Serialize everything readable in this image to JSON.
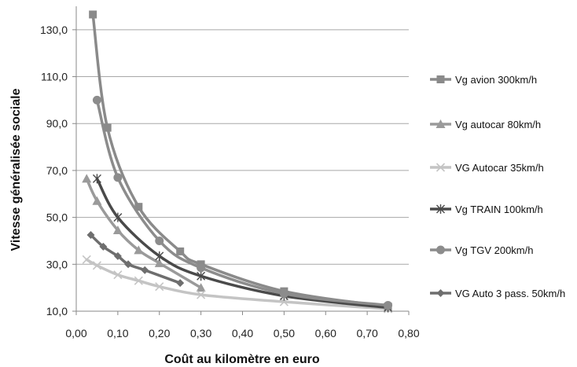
{
  "chart_data": {
    "type": "line",
    "xlabel": "Coût au kilomètre en euro",
    "ylabel": "Vitesse généralisée sociale",
    "xlim": [
      0,
      0.8
    ],
    "ylim": [
      10,
      140
    ],
    "x_ticks": [
      "0,00",
      "0,10",
      "0,20",
      "0,30",
      "0,40",
      "0,50",
      "0,60",
      "0,70",
      "0,80"
    ],
    "y_ticks": [
      "10,0",
      "30,0",
      "50,0",
      "70,0",
      "90,0",
      "110,0",
      "130,0"
    ],
    "grid": "horizontal",
    "legend": "right",
    "series": [
      {
        "name": "Vg avion 300km/h",
        "color": "#8a8a8a",
        "marker": "square",
        "points": [
          [
            0.04,
            136.5
          ],
          [
            0.075,
            88.2
          ],
          [
            0.15,
            54.5
          ],
          [
            0.25,
            35.5
          ],
          [
            0.3,
            30.0
          ],
          [
            0.5,
            18.5
          ],
          [
            0.75,
            12.0
          ]
        ]
      },
      {
        "name": "Vg autocar 80km/h",
        "color": "#9a9a9a",
        "marker": "triangle",
        "points": [
          [
            0.025,
            66.5
          ],
          [
            0.05,
            57.0
          ],
          [
            0.1,
            44.5
          ],
          [
            0.15,
            36.0
          ],
          [
            0.2,
            30.5
          ],
          [
            0.3,
            20.0
          ]
        ]
      },
      {
        "name": "VG Autocar 35km/h",
        "color": "#c4c4c4",
        "marker": "x",
        "points": [
          [
            0.025,
            32.0
          ],
          [
            0.05,
            29.5
          ],
          [
            0.1,
            25.5
          ],
          [
            0.15,
            23.0
          ],
          [
            0.2,
            20.5
          ],
          [
            0.3,
            17.0
          ],
          [
            0.5,
            14.0
          ],
          [
            0.75,
            11.0
          ]
        ]
      },
      {
        "name": "Vg TRAIN 100km/h",
        "color": "#4a4a4a",
        "marker": "star",
        "points": [
          [
            0.05,
            66.5
          ],
          [
            0.1,
            50.0
          ],
          [
            0.2,
            33.5
          ],
          [
            0.3,
            25.0
          ],
          [
            0.5,
            16.5
          ],
          [
            0.75,
            11.5
          ]
        ]
      },
      {
        "name": "Vg TGV 200km/h",
        "color": "#8c8c8c",
        "marker": "circle",
        "points": [
          [
            0.05,
            100.0
          ],
          [
            0.1,
            67.0
          ],
          [
            0.2,
            40.0
          ],
          [
            0.3,
            28.5
          ],
          [
            0.5,
            17.5
          ],
          [
            0.75,
            12.5
          ]
        ]
      },
      {
        "name": "VG Auto 3 pass. 50km/h",
        "color": "#6e6e6e",
        "marker": "diamond",
        "points": [
          [
            0.035,
            42.5
          ],
          [
            0.065,
            37.5
          ],
          [
            0.1,
            33.5
          ],
          [
            0.125,
            30.0
          ],
          [
            0.165,
            27.5
          ],
          [
            0.25,
            22.0
          ]
        ]
      }
    ]
  }
}
